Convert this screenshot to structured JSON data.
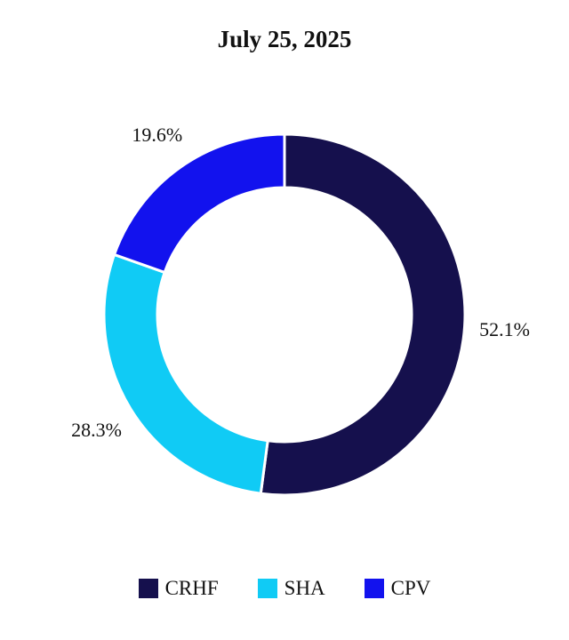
{
  "chart_data": {
    "type": "pie",
    "title": "July 25, 2025",
    "donut": true,
    "categories": [
      "CRHF",
      "SHA",
      "CPV"
    ],
    "values": [
      52.1,
      28.3,
      19.6
    ],
    "value_labels": [
      "52.1%",
      "28.3%",
      "19.6%"
    ],
    "colors": [
      "#15104d",
      "#10cbf5",
      "#1212ee"
    ],
    "start_angle_deg": 0,
    "direction": "clockwise",
    "legend_position": "bottom"
  }
}
